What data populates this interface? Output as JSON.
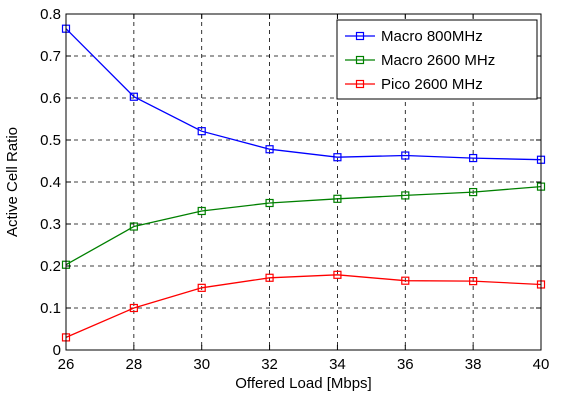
{
  "chart_data": {
    "type": "line",
    "title": "",
    "xlabel": "Offered Load [Mbps]",
    "ylabel": "Active Cell Ratio",
    "xlim": [
      26,
      40
    ],
    "ylim": [
      0,
      0.8
    ],
    "xticks": [
      26,
      28,
      30,
      32,
      34,
      36,
      38,
      40
    ],
    "yticks": [
      0,
      0.1,
      0.2,
      0.3,
      0.4,
      0.5,
      0.6,
      0.7,
      0.8
    ],
    "ytick_labels": [
      "0",
      "0.1",
      "0.2",
      "0.3",
      "0.4",
      "0.5",
      "0.6",
      "0.7",
      "0.8"
    ],
    "grid": true,
    "grid_style": "dashed",
    "legend_position": "top-right",
    "marker": "square",
    "x": [
      26,
      28,
      30,
      32,
      34,
      36,
      38,
      40
    ],
    "series": [
      {
        "name": "Macro 800MHz",
        "color": "#0000ff",
        "values": [
          0.765,
          0.603,
          0.521,
          0.478,
          0.459,
          0.463,
          0.457,
          0.453
        ]
      },
      {
        "name": "Macro 2600 MHz",
        "color": "#008000",
        "values": [
          0.203,
          0.294,
          0.331,
          0.35,
          0.36,
          0.368,
          0.376,
          0.389
        ]
      },
      {
        "name": "Pico 2600 MHz",
        "color": "#ff0000",
        "values": [
          0.03,
          0.1,
          0.148,
          0.172,
          0.179,
          0.165,
          0.164,
          0.156
        ]
      }
    ]
  }
}
